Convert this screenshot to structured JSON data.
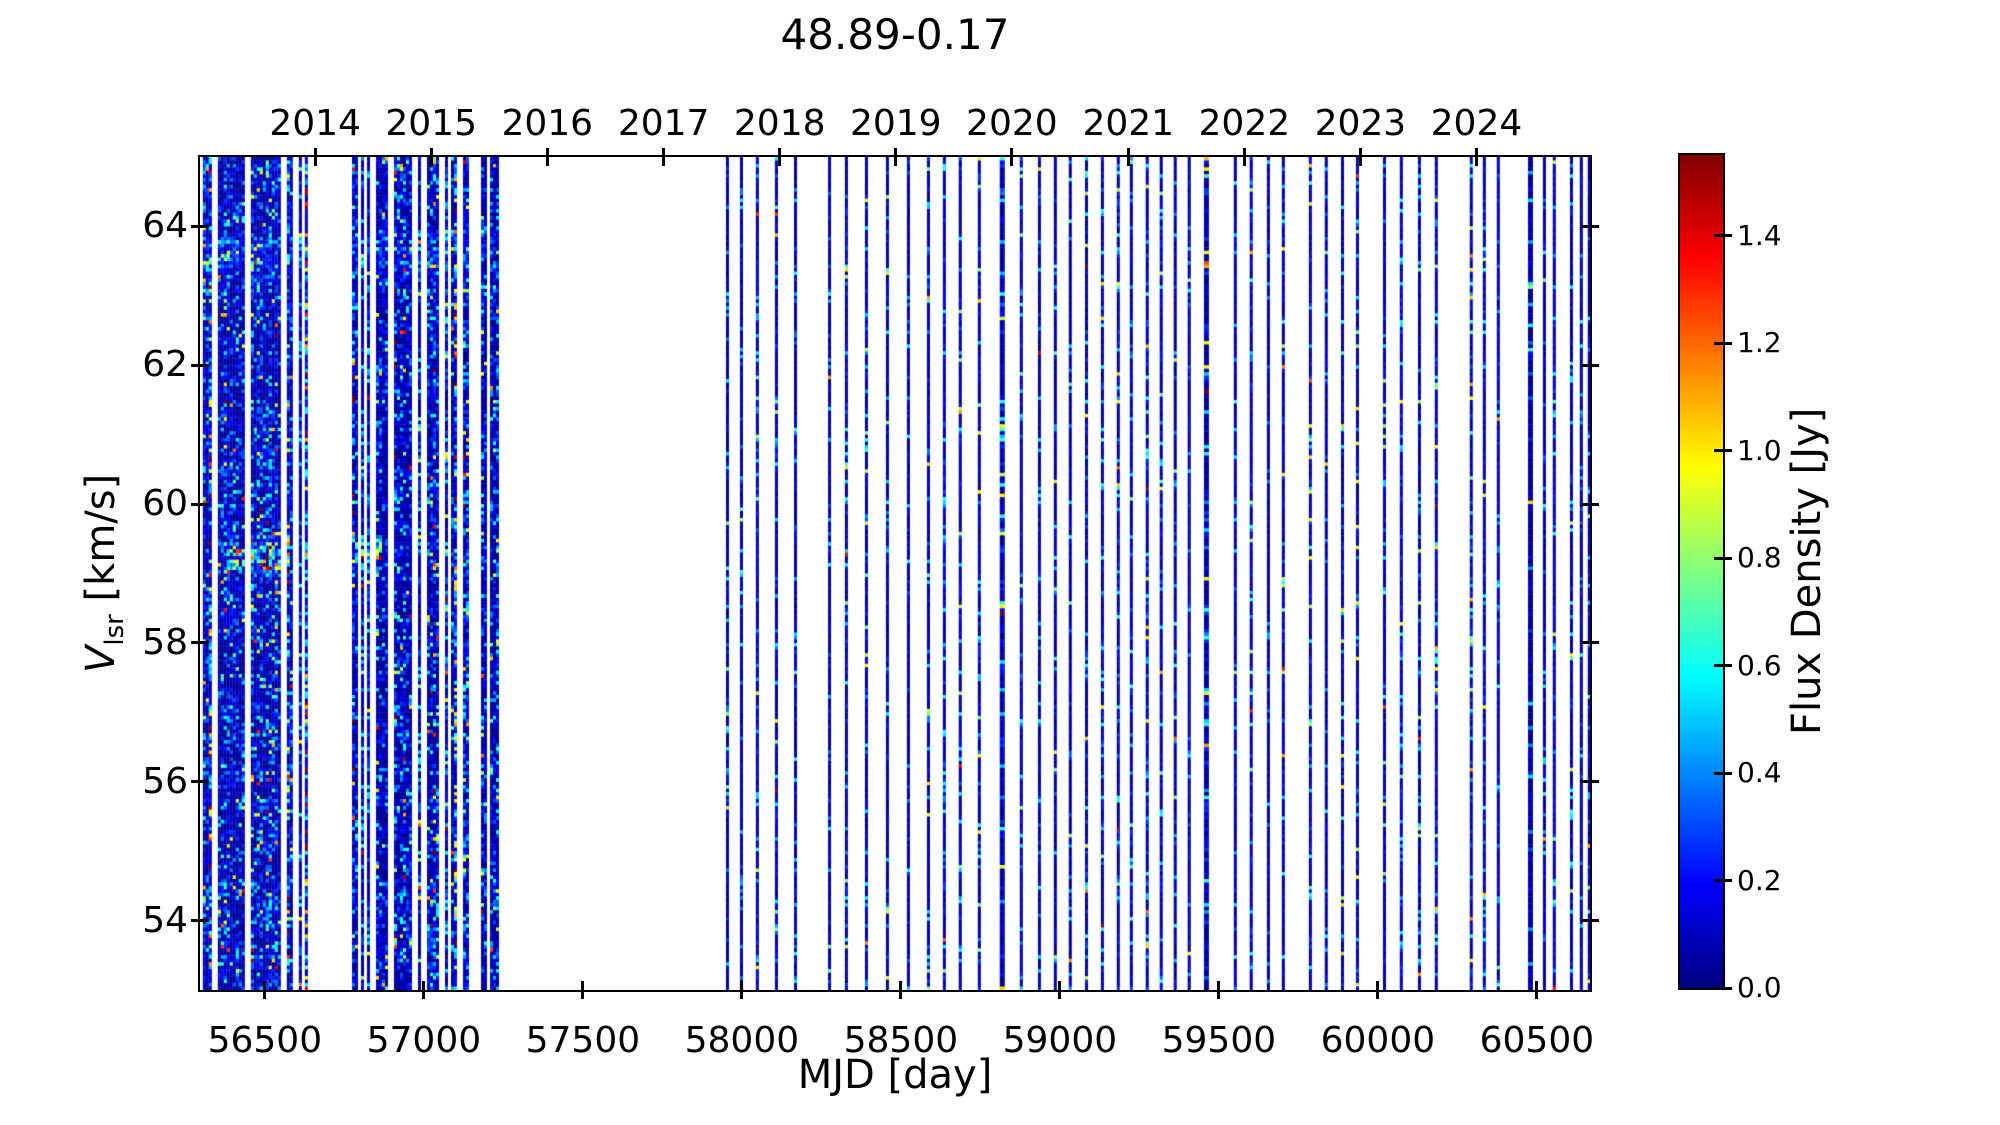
{
  "chart_data": {
    "type": "heatmap",
    "title": "48.89-0.17",
    "xlabel": "MJD [day]",
    "ylabel": {
      "symbol": "V",
      "subscript": "lsr",
      "unit": " [km/s]"
    },
    "x_axis": {
      "range": [
        56296,
        60667
      ],
      "ticks": [
        "56500",
        "57000",
        "57500",
        "58000",
        "58500",
        "59000",
        "59500",
        "60000",
        "60500"
      ]
    },
    "top_axis": {
      "ticks": [
        {
          "label": "2014",
          "mjd": 56658
        },
        {
          "label": "2015",
          "mjd": 57023
        },
        {
          "label": "2016",
          "mjd": 57388
        },
        {
          "label": "2017",
          "mjd": 57754
        },
        {
          "label": "2018",
          "mjd": 58119
        },
        {
          "label": "2019",
          "mjd": 58484
        },
        {
          "label": "2020",
          "mjd": 58849
        },
        {
          "label": "2021",
          "mjd": 59215
        },
        {
          "label": "2022",
          "mjd": 59580
        },
        {
          "label": "2023",
          "mjd": 59945
        },
        {
          "label": "2024",
          "mjd": 60310
        }
      ]
    },
    "y_axis": {
      "range": [
        53,
        65
      ],
      "ticks": [
        "54",
        "56",
        "58",
        "60",
        "62",
        "64"
      ]
    },
    "colorbar": {
      "label": "Flux Density [Jy]",
      "range": [
        0,
        1.55
      ],
      "tick_values": [
        0,
        0.2,
        0.4,
        0.6,
        0.8,
        1.0,
        1.2,
        1.4
      ],
      "tick_labels": [
        "0.0",
        "0.2",
        "0.4",
        "0.6",
        "0.8",
        "1.0",
        "1.2",
        "1.4"
      ],
      "colormap": "jet",
      "stops": [
        [
          0,
          "#000080"
        ],
        [
          0.125,
          "#0000ff"
        ],
        [
          0.375,
          "#00ffff"
        ],
        [
          0.625,
          "#ffff00"
        ],
        [
          0.875,
          "#ff0000"
        ],
        [
          1,
          "#800000"
        ]
      ]
    },
    "observations": {
      "dense_blocks": [
        {
          "start": 56305,
          "end": 56632,
          "gaps": [
            56340,
            56440,
            56556,
            56592,
            56616
          ]
        },
        {
          "start": 56774,
          "end": 57233,
          "gaps": [
            56793,
            56812,
            56838,
            56894,
            56970,
            56995,
            57054,
            57076,
            57108,
            57146,
            57168,
            57199
          ]
        }
      ],
      "sparse_epochs": [
        57950,
        57994,
        58044,
        58104,
        58164,
        58271,
        58324,
        58387,
        58453,
        58519,
        58582,
        58632,
        58682,
        58742,
        58811,
        58874,
        58931,
        58981,
        59028,
        59079,
        59129,
        59179,
        59220,
        59270,
        59314,
        59358,
        59402,
        59453,
        59547,
        59597,
        59651,
        59698,
        59783,
        59833,
        59884,
        59931,
        60016,
        60069,
        60126,
        60179,
        60289,
        60330,
        60374,
        60472,
        60519,
        60550,
        60604,
        60635,
        60660
      ],
      "wide_epochs": [
        58811,
        59453,
        60472
      ],
      "bright_features": [
        {
          "mjd_start": 56380,
          "mjd_end": 56570,
          "v_center": 59.25,
          "v_sigma": 0.22,
          "boost": 0.55
        },
        {
          "mjd_start": 56780,
          "mjd_end": 56860,
          "v_center": 59.3,
          "v_sigma": 0.18,
          "boost": 0.75
        },
        {
          "mjd_start": 56305,
          "mjd_end": 57233,
          "v_center": 63.6,
          "v_sigma": 0.3,
          "boost": 0.18
        }
      ]
    }
  }
}
